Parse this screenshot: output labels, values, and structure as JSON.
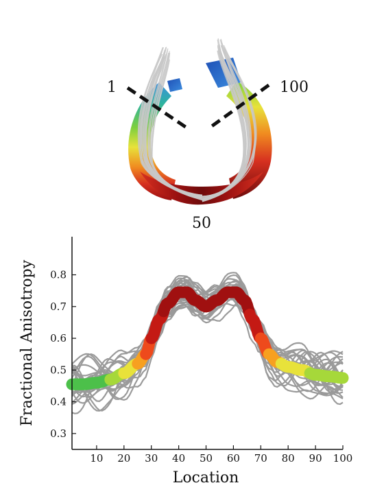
{
  "figure": {
    "markers": [
      {
        "label": "1"
      },
      {
        "label": "100"
      },
      {
        "label": "50"
      }
    ],
    "tract_colors": [
      "#1e4fb5",
      "#3c8ee0",
      "#2eb3a0",
      "#7ccf3e",
      "#e8e23a",
      "#f08a20",
      "#d63020",
      "#9a1010",
      "#6e0c0c"
    ],
    "fiber_color": "#c8c8c8"
  },
  "chart_data": {
    "type": "line",
    "xlabel": "Location",
    "ylabel": "Fractional Anisotropy",
    "xlim": [
      1,
      100
    ],
    "ylim": [
      0.25,
      0.92
    ],
    "xticks": [
      10,
      20,
      30,
      40,
      50,
      60,
      70,
      80,
      90,
      100
    ],
    "yticks": [
      0.3,
      0.4,
      0.5,
      0.6,
      0.7,
      0.8
    ],
    "grid": false,
    "mean_profile": {
      "x": [
        1,
        5,
        10,
        15,
        20,
        25,
        28,
        30,
        33,
        36,
        40,
        43,
        46,
        50,
        54,
        58,
        61,
        64,
        67,
        70,
        73,
        76,
        80,
        85,
        90,
        95,
        100
      ],
      "y": [
        0.455,
        0.455,
        0.46,
        0.47,
        0.49,
        0.52,
        0.55,
        0.6,
        0.66,
        0.71,
        0.745,
        0.745,
        0.72,
        0.7,
        0.72,
        0.745,
        0.745,
        0.72,
        0.66,
        0.6,
        0.55,
        0.525,
        0.51,
        0.5,
        0.485,
        0.48,
        0.475
      ]
    },
    "mean_profile_colors": [
      {
        "fa": 0.45,
        "color": "#4cc04a"
      },
      {
        "fa": 0.47,
        "color": "#a6d83a"
      },
      {
        "fa": 0.49,
        "color": "#e8e23a"
      },
      {
        "fa": 0.52,
        "color": "#f7a020"
      },
      {
        "fa": 0.55,
        "color": "#ee4a1c"
      },
      {
        "fa": 0.6,
        "color": "#c41a14"
      },
      {
        "fa": 0.68,
        "color": "#a01010"
      },
      {
        "fa": 0.75,
        "color": "#7a0c0c"
      }
    ],
    "subject_line_color": "#9a9a9a",
    "subject_count": 28
  }
}
